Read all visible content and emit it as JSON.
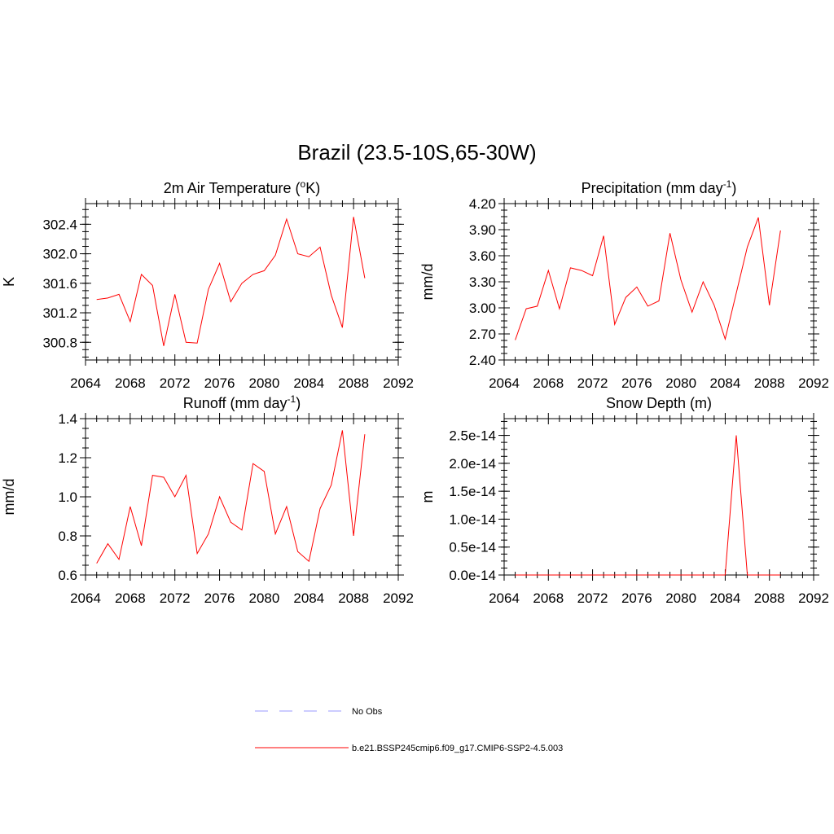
{
  "title": "Brazil (23.5-10S,65-30W)",
  "colors": {
    "model": "#ff0000",
    "obs": "#9999ff"
  },
  "legend": {
    "placement": "bottom",
    "items": [
      {
        "label": "No Obs",
        "style": "dashed",
        "color": "#9999ff"
      },
      {
        "label": "b.e21.BSSP245cmip6.f09_g17.CMIP6-SSP2-4.5.003",
        "style": "solid",
        "color": "#ff0000"
      }
    ]
  },
  "chart_data": [
    {
      "type": "line",
      "title": "2m Air Temperature (",
      "title_sup": "o",
      "title_after": "K)",
      "ylabel": "K",
      "xlim": [
        2064,
        2092
      ],
      "ylim": [
        300.56,
        302.68
      ],
      "x_ticks": [
        "2064",
        "2068",
        "2072",
        "2076",
        "2080",
        "2084",
        "2088",
        "2092"
      ],
      "y_ticks": [
        "300.8",
        "301.2",
        "301.6",
        "302.0",
        "302.4"
      ],
      "grid": false,
      "series": [
        {
          "color": "#ff0000",
          "x": [
            2065,
            2066,
            2067,
            2068,
            2069,
            2070,
            2071,
            2072,
            2073,
            2074,
            2075,
            2076,
            2077,
            2078,
            2079,
            2080,
            2081,
            2082,
            2083,
            2084,
            2085,
            2086,
            2087,
            2088,
            2089
          ],
          "values": [
            301.38,
            301.4,
            301.45,
            301.08,
            301.72,
            301.57,
            300.75,
            301.45,
            300.8,
            300.79,
            301.52,
            301.87,
            301.35,
            301.6,
            301.72,
            301.77,
            301.98,
            302.47,
            302.0,
            301.96,
            302.09,
            301.44,
            301.0,
            302.5,
            301.67
          ]
        }
      ]
    },
    {
      "type": "line",
      "title": "Precipitation (mm day",
      "title_sup": "-1",
      "title_after": ")",
      "ylabel": "mm/d",
      "xlim": [
        2064,
        2092
      ],
      "ylim": [
        2.4,
        4.2
      ],
      "x_ticks": [
        "2064",
        "2068",
        "2072",
        "2076",
        "2080",
        "2084",
        "2088",
        "2092"
      ],
      "y_ticks": [
        "2.40",
        "2.70",
        "3.00",
        "3.30",
        "3.60",
        "3.90",
        "4.20"
      ],
      "grid": false,
      "series": [
        {
          "color": "#ff0000",
          "x": [
            2065,
            2066,
            2067,
            2068,
            2069,
            2070,
            2071,
            2072,
            2073,
            2074,
            2075,
            2076,
            2077,
            2078,
            2079,
            2080,
            2081,
            2082,
            2083,
            2084,
            2085,
            2086,
            2087,
            2088,
            2089
          ],
          "values": [
            2.63,
            2.99,
            3.02,
            3.43,
            2.99,
            3.46,
            3.43,
            3.37,
            3.83,
            2.81,
            3.12,
            3.24,
            3.02,
            3.08,
            3.86,
            3.32,
            2.95,
            3.3,
            3.03,
            2.64,
            3.17,
            3.7,
            4.04,
            3.03,
            3.89
          ]
        }
      ]
    },
    {
      "type": "line",
      "title": "Runoff (mm day",
      "title_sup": "-1",
      "title_after": ")",
      "ylabel": "mm/d",
      "xlim": [
        2064,
        2092
      ],
      "ylim": [
        0.6,
        1.4
      ],
      "x_ticks": [
        "2064",
        "2068",
        "2072",
        "2076",
        "2080",
        "2084",
        "2088",
        "2092"
      ],
      "y_ticks": [
        "0.6",
        "0.8",
        "1.0",
        "1.2",
        "1.4"
      ],
      "grid": false,
      "series": [
        {
          "color": "#ff0000",
          "x": [
            2065,
            2066,
            2067,
            2068,
            2069,
            2070,
            2071,
            2072,
            2073,
            2074,
            2075,
            2076,
            2077,
            2078,
            2079,
            2080,
            2081,
            2082,
            2083,
            2084,
            2085,
            2086,
            2087,
            2088,
            2089
          ],
          "values": [
            0.66,
            0.76,
            0.68,
            0.95,
            0.75,
            1.11,
            1.1,
            1.0,
            1.11,
            0.71,
            0.81,
            1.0,
            0.87,
            0.83,
            1.17,
            1.13,
            0.81,
            0.95,
            0.72,
            0.67,
            0.94,
            1.06,
            1.34,
            0.8,
            1.32
          ]
        }
      ]
    },
    {
      "type": "line",
      "title": "Snow Depth (m)",
      "title_sup": "",
      "title_after": "",
      "ylabel": "m",
      "xlim": [
        2064,
        2092
      ],
      "ylim": [
        0,
        2.8e-14
      ],
      "x_ticks": [
        "2064",
        "2068",
        "2072",
        "2076",
        "2080",
        "2084",
        "2088",
        "2092"
      ],
      "y_ticks": [
        "0.0e-14",
        "0.5e-14",
        "1.0e-14",
        "1.5e-14",
        "2.0e-14",
        "2.5e-14"
      ],
      "grid": false,
      "series": [
        {
          "color": "#ff0000",
          "x": [
            2065,
            2066,
            2067,
            2068,
            2069,
            2070,
            2071,
            2072,
            2073,
            2074,
            2075,
            2076,
            2077,
            2078,
            2079,
            2080,
            2081,
            2082,
            2083,
            2084,
            2085,
            2086,
            2087,
            2088,
            2089
          ],
          "values": [
            0,
            0,
            0,
            0,
            0,
            0,
            0,
            0,
            0,
            0,
            0,
            0,
            0,
            0,
            0,
            0,
            0,
            0,
            0,
            0,
            2.5e-14,
            0,
            0,
            0,
            0
          ]
        }
      ]
    }
  ]
}
